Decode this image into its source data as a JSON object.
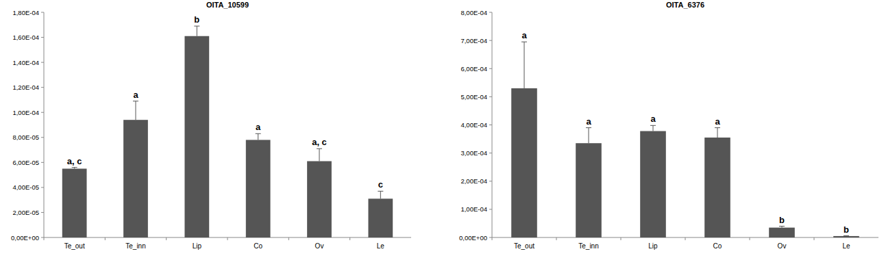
{
  "chart_data": [
    {
      "type": "bar",
      "title": "OITA_10599",
      "categories": [
        "Te_out",
        "Te_inn",
        "Lip",
        "Co",
        "Ov",
        "Le"
      ],
      "values": [
        5.5e-05,
        9.4e-05,
        0.000161,
        7.8e-05,
        6.1e-05,
        3.1e-05
      ],
      "errors": [
        1e-06,
        1.5e-05,
        8e-06,
        5e-06,
        1e-05,
        6e-06
      ],
      "annotations": [
        "a, c",
        "a",
        "b",
        "a",
        "a, c",
        "c"
      ],
      "color": "#555555",
      "ylim": [
        0,
        0.00018
      ],
      "yticks": [
        {
          "value": 0,
          "label": "0,00E+00"
        },
        {
          "value": 2e-05,
          "label": "2,00E-05"
        },
        {
          "value": 4e-05,
          "label": "4,00E-05"
        },
        {
          "value": 6e-05,
          "label": "6,00E-05"
        },
        {
          "value": 8e-05,
          "label": "8,00E-05"
        },
        {
          "value": 0.0001,
          "label": "1,00E-04"
        },
        {
          "value": 0.00012,
          "label": "1,20E-04"
        },
        {
          "value": 0.00014,
          "label": "1,40E-04"
        },
        {
          "value": 0.00016,
          "label": "1,60E-04"
        },
        {
          "value": 0.00018,
          "label": "1,80E-04"
        }
      ],
      "grid": false
    },
    {
      "type": "bar",
      "title": "OITA_6376",
      "categories": [
        "Te_out",
        "Te_inn",
        "Lip",
        "Co",
        "Ov",
        "Le"
      ],
      "values": [
        0.00053,
        0.000335,
        0.000378,
        0.000355,
        3.5e-05,
        5e-06
      ],
      "errors": [
        0.000165,
        5.5e-05,
        2e-05,
        3.5e-05,
        5e-06,
        1e-06
      ],
      "annotations": [
        "a",
        "a",
        "a",
        "a",
        "b",
        "b"
      ],
      "color": "#555555",
      "ylim": [
        0,
        0.0008
      ],
      "yticks": [
        {
          "value": 0,
          "label": "0,00E+00"
        },
        {
          "value": 0.0001,
          "label": "1,00E-04"
        },
        {
          "value": 0.0002,
          "label": "2,00E-04"
        },
        {
          "value": 0.0003,
          "label": "3,00E-04"
        },
        {
          "value": 0.0004,
          "label": "4,00E-04"
        },
        {
          "value": 0.0005,
          "label": "5,00E-04"
        },
        {
          "value": 0.0006,
          "label": "6,00E-04"
        },
        {
          "value": 0.0007,
          "label": "7,00E-04"
        },
        {
          "value": 0.0008,
          "label": "8,00E-04"
        }
      ],
      "grid": false
    }
  ]
}
